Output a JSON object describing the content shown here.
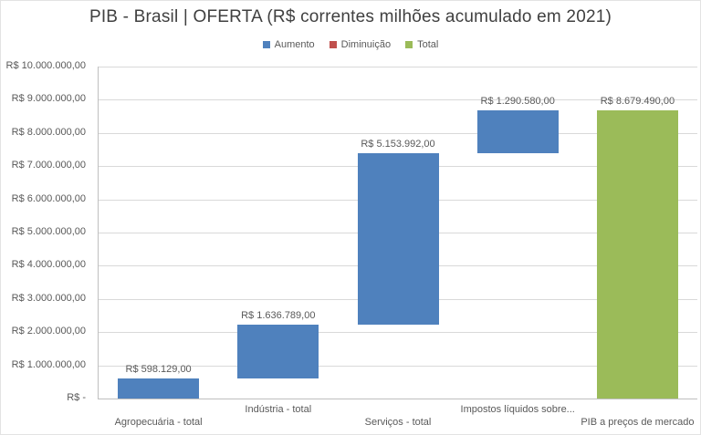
{
  "chart_data": {
    "type": "bar",
    "subtype": "waterfall",
    "title": "PIB - Brasil | OFERTA (R$ correntes milhões acumulado em 2021)",
    "legend": [
      {
        "label": "Aumento",
        "color": "#4F81BD"
      },
      {
        "label": "Diminuição",
        "color": "#C0504D"
      },
      {
        "label": "Total",
        "color": "#9BBB59"
      }
    ],
    "legend_position": "top",
    "grid": true,
    "y_axis": {
      "min": 0,
      "max": 10000000,
      "step": 1000000,
      "tick_labels": [
        "R$ -",
        "R$ 1.000.000,00",
        "R$ 2.000.000,00",
        "R$ 3.000.000,00",
        "R$ 4.000.000,00",
        "R$ 5.000.000,00",
        "R$ 6.000.000,00",
        "R$ 7.000.000,00",
        "R$ 8.000.000,00",
        "R$ 9.000.000,00",
        "R$ 10.000.000,00"
      ]
    },
    "categories": [
      "Agropecuária - total",
      "Indústria - total",
      "Serviços - total",
      "Impostos líquidos sobre...",
      "PIB a preços de mercado"
    ],
    "bars": [
      {
        "category": "Agropecuária - total",
        "series": "Aumento",
        "base": 0,
        "value": 598129,
        "data_label": "R$ 598.129,00"
      },
      {
        "category": "Indústria - total",
        "series": "Aumento",
        "base": 598129,
        "value": 1636789,
        "data_label": "R$ 1.636.789,00"
      },
      {
        "category": "Serviços - total",
        "series": "Aumento",
        "base": 2234918,
        "value": 5153992,
        "data_label": "R$ 5.153.992,00"
      },
      {
        "category": "Impostos líquidos sobre...",
        "series": "Aumento",
        "base": 7388910,
        "value": 1290580,
        "data_label": "R$ 1.290.580,00"
      },
      {
        "category": "PIB a preços de mercado",
        "series": "Total",
        "base": 0,
        "value": 8679490,
        "data_label": "R$ 8.679.490,00"
      }
    ],
    "series_colors": {
      "Aumento": "#4F81BD",
      "Diminuição": "#C0504D",
      "Total": "#9BBB59"
    }
  },
  "style": {
    "background": "#FFFFFF",
    "border": "#E3E3E3",
    "gridline": "#D9D9D9",
    "axis_line": "#BFBFBF",
    "title_color": "#404040",
    "label_color": "#595959"
  }
}
